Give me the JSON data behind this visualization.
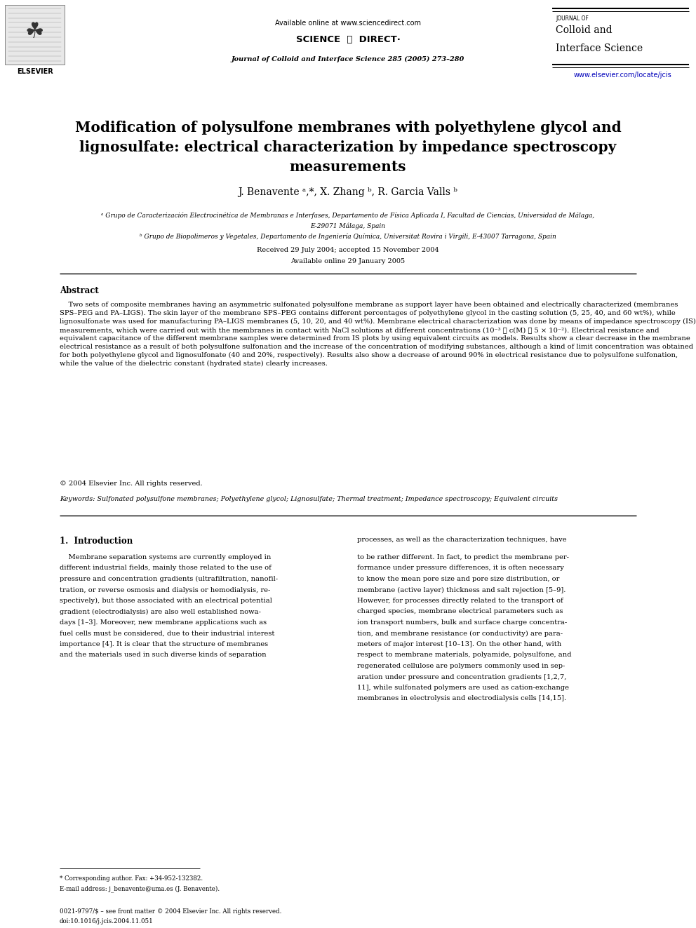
{
  "bg_color": "#ffffff",
  "page_width": 9.92,
  "page_height": 13.23,
  "dpi": 100,
  "header": {
    "available_online": "Available online at www.sciencedirect.com",
    "journal_line": "Journal of Colloid and Interface Science 285 (2005) 273–280",
    "journal_name_line1": "JOURNAL OF",
    "journal_name_line2": "Colloid and",
    "journal_name_line3": "Interface Science",
    "journal_url": "www.elsevier.com/locate/jcis",
    "elsevier_text": "ELSEVIER"
  },
  "title_line1": "Modification of polysulfone membranes with polyethylene glycol and",
  "title_line2": "lignosulfate: electrical characterization by impedance spectroscopy",
  "title_line3": "measurements",
  "author_line": "J. Benavente ᵃ,*, X. Zhang ᵇ, R. Garcia Valls ᵇ",
  "affil_a": "ᵃ Grupo de Caracterización Electrocinética de Membranas e Interfases, Departamento de Física Aplicada I, Facultad de Ciencias, Universidad de Málaga,",
  "affil_a2": "E-29071 Málaga, Spain",
  "affil_b": "ᵇ Grupo de Biopolimeros y Vegetales, Departamento de Ingeniería Química, Universitat Rovira i Virgili, E-43007 Tarragona, Spain",
  "received": "Received 29 July 2004; accepted 15 November 2004",
  "available_online_article": "Available online 29 January 2005",
  "abstract_title": "Abstract",
  "abstract_body": "    Two sets of composite membranes having an asymmetric sulfonated polysulfone membrane as support layer have been obtained and electrically characterized (membranes SPS–PEG and PA–LIGS). The skin layer of the membrane SPS–PEG contains different percentages of polyethylene glycol in the casting solution (5, 25, 40, and 60 wt%), while lignosulfonate was used for manufacturing PA–LIGS membranes (5, 10, 20, and 40 wt%). Membrane electrical characterization was done by means of impedance spectroscopy (IS) measurements, which were carried out with the membranes in contact with NaCl solutions at different concentrations (10⁻³ ⩽ c(M) ⩽ 5 × 10⁻²). Electrical resistance and equivalent capacitance of the different membrane samples were determined from IS plots by using equivalent circuits as models. Results show a clear decrease in the membrane electrical resistance as a result of both polysulfone sulfonation and the increase of the concentration of modifying substances, although a kind of limit concentration was obtained for both polyethylene glycol and lignosulfonate (40 and 20%, respectively). Results also show a decrease of around 90% in electrical resistance due to polysulfone sulfonation, while the value of the dielectric constant (hydrated state) clearly increases.",
  "copyright": "© 2004 Elsevier Inc. All rights reserved.",
  "keywords": "Keywords: Sulfonated polysulfone membranes; Polyethylene glycol; Lignosulfate; Thermal treatment; Impedance spectroscopy; Equivalent circuits",
  "sec1_title": "1.  Introduction",
  "intro_left_lines": [
    "    Membrane separation systems are currently employed in",
    "different industrial fields, mainly those related to the use of",
    "pressure and concentration gradients (ultrafiltration, nanofil-",
    "tration, or reverse osmosis and dialysis or hemodialysis, re-",
    "spectively), but those associated with an electrical potential",
    "gradient (electrodialysis) are also well established nowa-",
    "days [1–3]. Moreover, new membrane applications such as",
    "fuel cells must be considered, due to their industrial interest",
    "importance [4]. It is clear that the structure of membranes",
    "and the materials used in such diverse kinds of separation"
  ],
  "intro_right_line0": "processes, as well as the characterization techniques, have",
  "intro_right_lines": [
    "to be rather different. In fact, to predict the membrane per-",
    "formance under pressure differences, it is often necessary",
    "to know the mean pore size and pore size distribution, or",
    "membrane (active layer) thickness and salt rejection [5–9].",
    "However, for processes directly related to the transport of",
    "charged species, membrane electrical parameters such as",
    "ion transport numbers, bulk and surface charge concentra-",
    "tion, and membrane resistance (or conductivity) are para-",
    "meters of major interest [10–13]. On the other hand, with",
    "respect to membrane materials, polyamide, polysulfone, and",
    "regenerated cellulose are polymers commonly used in sep-",
    "aration under pressure and concentration gradients [1,2,7,",
    "11], while sulfonated polymers are used as cation-exchange",
    "membranes in electrolysis and electrodialysis cells [14,15]."
  ],
  "footnote1": "* Corresponding author. Fax: +34-952-132382.",
  "footnote2": "E-mail address: j_benavente@uma.es (J. Benavente).",
  "footer": "0021-9797/$ – see front matter © 2004 Elsevier Inc. All rights reserved.",
  "footer2": "doi:10.1016/j.jcis.2004.11.051",
  "link_color": "#0000bb",
  "text_color": "#000000"
}
